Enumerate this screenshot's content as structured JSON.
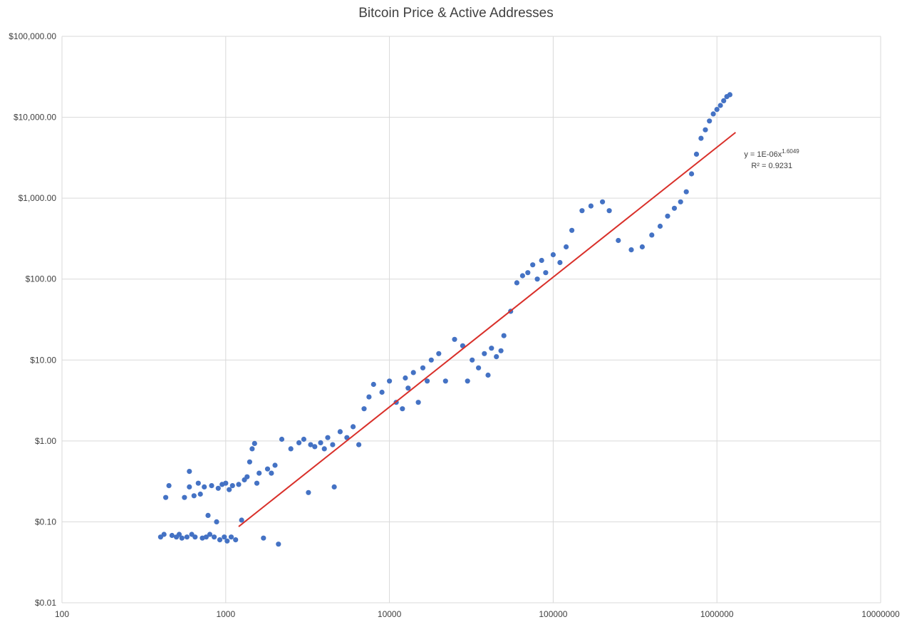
{
  "chart_data": {
    "type": "scatter",
    "title": "Bitcoin Price & Active Addresses",
    "xlabel": "",
    "ylabel": "",
    "x_scale": "log",
    "y_scale": "log",
    "xlim": [
      100,
      10000000
    ],
    "ylim": [
      0.01,
      100000
    ],
    "grid": true,
    "x_ticks": [
      "100",
      "1000",
      "10000",
      "100000",
      "1000000",
      "10000000"
    ],
    "y_ticks": [
      "$0.01",
      "$0.10",
      "$1.00",
      "$10.00",
      "$100.00",
      "$1,000.00",
      "$10,000.00",
      "$100,000.00"
    ],
    "series": [
      {
        "color": "#4472C4",
        "points": [
          [
            400,
            0.065
          ],
          [
            420,
            0.07
          ],
          [
            430,
            0.2
          ],
          [
            450,
            0.28
          ],
          [
            470,
            0.068
          ],
          [
            500,
            0.065
          ],
          [
            520,
            0.07
          ],
          [
            540,
            0.063
          ],
          [
            560,
            0.2
          ],
          [
            580,
            0.065
          ],
          [
            600,
            0.42
          ],
          [
            600,
            0.27
          ],
          [
            620,
            0.07
          ],
          [
            640,
            0.21
          ],
          [
            650,
            0.065
          ],
          [
            680,
            0.3
          ],
          [
            700,
            0.22
          ],
          [
            720,
            0.063
          ],
          [
            740,
            0.27
          ],
          [
            760,
            0.065
          ],
          [
            780,
            0.12
          ],
          [
            800,
            0.07
          ],
          [
            820,
            0.28
          ],
          [
            850,
            0.065
          ],
          [
            880,
            0.1
          ],
          [
            900,
            0.26
          ],
          [
            920,
            0.06
          ],
          [
            950,
            0.29
          ],
          [
            980,
            0.065
          ],
          [
            1000,
            0.3
          ],
          [
            1020,
            0.058
          ],
          [
            1050,
            0.25
          ],
          [
            1080,
            0.065
          ],
          [
            1100,
            0.28
          ],
          [
            1150,
            0.06
          ],
          [
            1200,
            0.29
          ],
          [
            1250,
            0.105
          ],
          [
            1300,
            0.33
          ],
          [
            1350,
            0.36
          ],
          [
            1400,
            0.55
          ],
          [
            1450,
            0.8
          ],
          [
            1500,
            0.93
          ],
          [
            1550,
            0.3
          ],
          [
            1600,
            0.4
          ],
          [
            1700,
            0.063
          ],
          [
            1800,
            0.45
          ],
          [
            1900,
            0.4
          ],
          [
            2000,
            0.5
          ],
          [
            2100,
            0.053
          ],
          [
            2200,
            1.05
          ],
          [
            2500,
            0.8
          ],
          [
            2800,
            0.95
          ],
          [
            3000,
            1.05
          ],
          [
            3200,
            0.23
          ],
          [
            3300,
            0.9
          ],
          [
            3500,
            0.85
          ],
          [
            3800,
            0.95
          ],
          [
            4000,
            0.8
          ],
          [
            4200,
            1.1
          ],
          [
            4500,
            0.9
          ],
          [
            4600,
            0.27
          ],
          [
            5000,
            1.3
          ],
          [
            5500,
            1.1
          ],
          [
            6000,
            1.5
          ],
          [
            6500,
            0.9
          ],
          [
            7000,
            2.5
          ],
          [
            7500,
            3.5
          ],
          [
            8000,
            5
          ],
          [
            9000,
            4
          ],
          [
            10000,
            5.5
          ],
          [
            11000,
            3
          ],
          [
            12000,
            2.5
          ],
          [
            12500,
            6
          ],
          [
            13000,
            4.5
          ],
          [
            14000,
            7
          ],
          [
            15000,
            3
          ],
          [
            16000,
            8
          ],
          [
            17000,
            5.5
          ],
          [
            18000,
            10
          ],
          [
            20000,
            12
          ],
          [
            22000,
            5.5
          ],
          [
            25000,
            18
          ],
          [
            28000,
            15
          ],
          [
            30000,
            5.5
          ],
          [
            32000,
            10
          ],
          [
            35000,
            8
          ],
          [
            38000,
            12
          ],
          [
            40000,
            6.5
          ],
          [
            42000,
            14
          ],
          [
            45000,
            11
          ],
          [
            48000,
            13
          ],
          [
            50000,
            20
          ],
          [
            55000,
            40
          ],
          [
            60000,
            90
          ],
          [
            65000,
            110
          ],
          [
            70000,
            120
          ],
          [
            75000,
            150
          ],
          [
            80000,
            100
          ],
          [
            85000,
            170
          ],
          [
            90000,
            120
          ],
          [
            100000,
            200
          ],
          [
            110000,
            160
          ],
          [
            120000,
            250
          ],
          [
            130000,
            400
          ],
          [
            150000,
            700
          ],
          [
            170000,
            800
          ],
          [
            200000,
            900
          ],
          [
            220000,
            700
          ],
          [
            250000,
            300
          ],
          [
            300000,
            230
          ],
          [
            350000,
            250
          ],
          [
            400000,
            350
          ],
          [
            450000,
            450
          ],
          [
            500000,
            600
          ],
          [
            550000,
            750
          ],
          [
            600000,
            900
          ],
          [
            650000,
            1200
          ],
          [
            700000,
            2000
          ],
          [
            750000,
            3500
          ],
          [
            800000,
            5500
          ],
          [
            850000,
            7000
          ],
          [
            900000,
            9000
          ],
          [
            950000,
            11000
          ],
          [
            1000000,
            12500
          ],
          [
            1050000,
            14000
          ],
          [
            1100000,
            16000
          ],
          [
            1150000,
            18000
          ],
          [
            1200000,
            19000
          ]
        ]
      }
    ],
    "trendline": {
      "color": "#D9302A",
      "coef": 1e-06,
      "exponent": 1.6049,
      "x_start": 1200,
      "x_end": 1300000,
      "equation_prefix": "y = 1E-06x",
      "equation_exponent": "1.6049",
      "r_squared": "R² = 0.9231"
    }
  }
}
